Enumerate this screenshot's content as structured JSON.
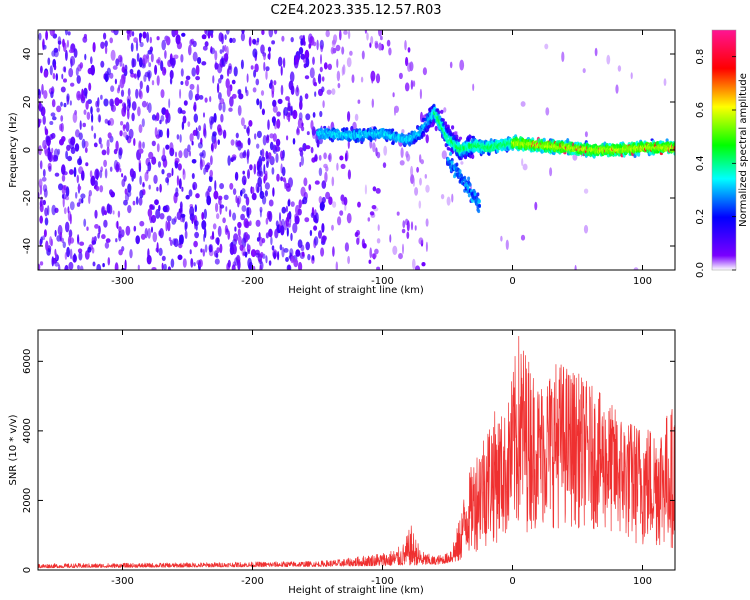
{
  "title": "C2E4.2023.335.12.57.R03",
  "chart_data": [
    {
      "type": "heatmap",
      "name": "spectrogram",
      "xlabel": "Height of straight line (km)",
      "ylabel": "Frequency (Hz)",
      "xlim": [
        -365,
        125
      ],
      "ylim": [
        -50,
        50
      ],
      "xticks": [
        -300,
        -200,
        -100,
        0,
        100
      ],
      "xtick_labels": [
        "-300",
        "-200",
        "-100",
        "0",
        "100"
      ],
      "yticks": [
        -40,
        -20,
        0,
        20,
        40
      ],
      "ytick_labels": [
        "-40",
        "-20",
        "0",
        "20",
        "40"
      ],
      "colorbar": {
        "label": "Normalized spectral amplitude",
        "range": [
          0,
          0.9
        ],
        "ticks": [
          0,
          0.2,
          0.4,
          0.6,
          0.8
        ],
        "tick_labels": [
          "0.0",
          "0.2",
          "0.4",
          "0.6",
          "0.8"
        ],
        "colors": [
          "#ffffff",
          "#7a00ff",
          "#0000ff",
          "#00ffff",
          "#00ff00",
          "#ffff00",
          "#ff0000",
          "#ff1493"
        ]
      },
      "ridge": {
        "description": "central frequency band near 0 Hz",
        "points": [
          [
            -150,
            7
          ],
          [
            -120,
            6
          ],
          [
            -100,
            7
          ],
          [
            -80,
            4
          ],
          [
            -70,
            8
          ],
          [
            -60,
            16
          ],
          [
            -50,
            5
          ],
          [
            -40,
            0
          ],
          [
            -30,
            2
          ],
          [
            -20,
            1
          ],
          [
            0,
            3
          ],
          [
            20,
            2
          ],
          [
            40,
            1
          ],
          [
            60,
            0
          ],
          [
            80,
            0
          ],
          [
            100,
            1
          ],
          [
            125,
            1
          ]
        ]
      }
    },
    {
      "type": "line",
      "name": "snr",
      "xlabel": "Height of straight line (km)",
      "ylabel": "SNR (10 * v/v)",
      "xlim": [
        -365,
        125
      ],
      "ylim": [
        0,
        6900
      ],
      "xticks": [
        -300,
        -200,
        -100,
        0,
        100
      ],
      "xtick_labels": [
        "-300",
        "-200",
        "-100",
        "0",
        "100"
      ],
      "yticks": [
        0,
        2000,
        4000,
        6000
      ],
      "ytick_labels": [
        "0",
        "2000",
        "4000",
        "6000"
      ],
      "color": "#ef3030",
      "envelope": {
        "x": [
          -365,
          -250,
          -150,
          -130,
          -110,
          -95,
          -85,
          -78,
          -70,
          -60,
          -50,
          -42,
          -35,
          -25,
          -15,
          -5,
          5,
          20,
          35,
          50,
          70,
          90,
          110,
          125
        ],
        "y": [
          180,
          210,
          260,
          320,
          450,
          550,
          700,
          1300,
          550,
          400,
          500,
          1300,
          2600,
          3800,
          4600,
          4500,
          6900,
          5400,
          6100,
          5700,
          5000,
          4300,
          4200,
          4800
        ]
      },
      "floor": {
        "x": [
          -365,
          -150,
          -100,
          -60,
          -40,
          -30,
          -10,
          20,
          60,
          100,
          125
        ],
        "y": [
          60,
          100,
          120,
          150,
          250,
          500,
          800,
          1200,
          1200,
          600,
          600
        ]
      }
    }
  ]
}
